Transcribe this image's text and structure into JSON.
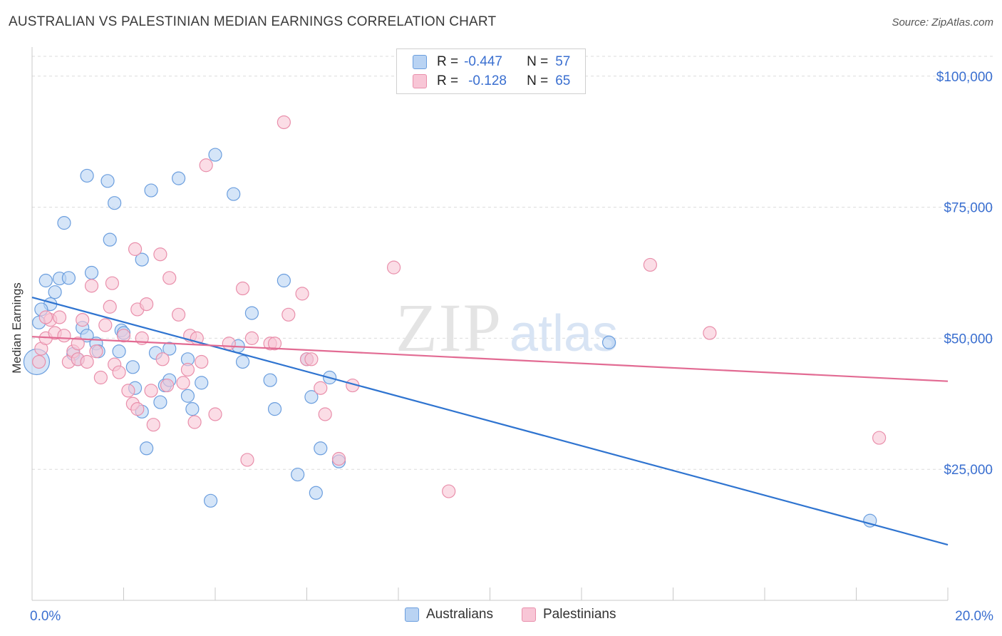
{
  "title": "AUSTRALIAN VS PALESTINIAN MEDIAN EARNINGS CORRELATION CHART",
  "source": "Source: ZipAtlas.com",
  "legend": {
    "rows": [
      {
        "r_label": "R =",
        "r_value": "-0.447",
        "n_label": "N =",
        "n_value": "57"
      },
      {
        "r_label": "R =",
        "r_value": "-0.128",
        "n_label": "N =",
        "n_value": "65"
      }
    ]
  },
  "bottom_legend": [
    "Australians",
    "Palestinians"
  ],
  "watermark": "ZIPatlas",
  "colors": {
    "australians_fill": "#b9d3f3",
    "australians_stroke": "#6b9ede",
    "australians_line": "#2f74d0",
    "palestinians_fill": "#f8c6d6",
    "palestinians_stroke": "#e98fab",
    "palestinians_line": "#e26b93",
    "axis_label": "#3a6fd0"
  },
  "chart_data": {
    "type": "scatter",
    "title": "AUSTRALIAN VS PALESTINIAN MEDIAN EARNINGS CORRELATION CHART",
    "xlabel": "",
    "ylabel": "Median Earnings",
    "xlim": [
      0,
      20
    ],
    "ylim": [
      0,
      105000
    ],
    "x_tick_labels": [
      "0.0%",
      "20.0%"
    ],
    "y_ticks": [
      25000,
      50000,
      75000,
      100000
    ],
    "y_tick_labels": [
      "$25,000",
      "$50,000",
      "$75,000",
      "$100,000"
    ],
    "grid": true,
    "legend_position": "top-center",
    "series": [
      {
        "name": "Australians",
        "r": -0.447,
        "n": 57,
        "trend": [
          [
            0,
            57800
          ],
          [
            20,
            10600
          ]
        ],
        "points": [
          [
            0.1,
            45500
          ],
          [
            0.15,
            53000
          ],
          [
            0.3,
            61000
          ],
          [
            0.4,
            56500
          ],
          [
            0.5,
            58800
          ],
          [
            0.6,
            61400
          ],
          [
            0.7,
            72000
          ],
          [
            0.8,
            61500
          ],
          [
            0.9,
            47000
          ],
          [
            1.0,
            46000
          ],
          [
            1.1,
            52000
          ],
          [
            1.2,
            50500
          ],
          [
            1.2,
            81000
          ],
          [
            1.3,
            62500
          ],
          [
            1.4,
            49000
          ],
          [
            1.45,
            47500
          ],
          [
            1.65,
            80000
          ],
          [
            1.7,
            68800
          ],
          [
            1.8,
            75800
          ],
          [
            1.9,
            47500
          ],
          [
            1.95,
            51500
          ],
          [
            2.0,
            51000
          ],
          [
            2.2,
            44500
          ],
          [
            2.25,
            40500
          ],
          [
            2.4,
            36000
          ],
          [
            2.4,
            65000
          ],
          [
            2.5,
            29000
          ],
          [
            2.6,
            78200
          ],
          [
            2.7,
            47200
          ],
          [
            2.8,
            37800
          ],
          [
            2.9,
            41000
          ],
          [
            3.0,
            48000
          ],
          [
            3.0,
            42000
          ],
          [
            3.2,
            80500
          ],
          [
            3.4,
            39000
          ],
          [
            3.4,
            46000
          ],
          [
            3.5,
            36500
          ],
          [
            3.7,
            41500
          ],
          [
            3.9,
            19000
          ],
          [
            4.0,
            85000
          ],
          [
            4.4,
            77500
          ],
          [
            4.5,
            48500
          ],
          [
            4.6,
            45500
          ],
          [
            4.8,
            54800
          ],
          [
            5.2,
            42000
          ],
          [
            5.3,
            36500
          ],
          [
            5.5,
            61000
          ],
          [
            5.8,
            24000
          ],
          [
            6.0,
            46000
          ],
          [
            6.1,
            38800
          ],
          [
            6.2,
            20500
          ],
          [
            6.3,
            29000
          ],
          [
            6.5,
            42500
          ],
          [
            6.7,
            26500
          ],
          [
            12.6,
            49200
          ],
          [
            18.3,
            15200
          ],
          [
            0.2,
            55500
          ]
        ]
      },
      {
        "name": "Palestinians",
        "r": -0.128,
        "n": 65,
        "trend": [
          [
            0,
            50300
          ],
          [
            20,
            41800
          ]
        ],
        "points": [
          [
            0.2,
            48000
          ],
          [
            0.3,
            50000
          ],
          [
            0.4,
            53500
          ],
          [
            0.5,
            51000
          ],
          [
            0.6,
            54000
          ],
          [
            0.7,
            50500
          ],
          [
            0.8,
            45500
          ],
          [
            0.9,
            47500
          ],
          [
            1.0,
            46000
          ],
          [
            1.0,
            49000
          ],
          [
            1.1,
            53500
          ],
          [
            1.2,
            45500
          ],
          [
            1.3,
            60000
          ],
          [
            1.4,
            47500
          ],
          [
            1.5,
            42500
          ],
          [
            1.6,
            52500
          ],
          [
            1.7,
            56000
          ],
          [
            1.75,
            60500
          ],
          [
            1.8,
            45000
          ],
          [
            1.9,
            43500
          ],
          [
            2.0,
            50500
          ],
          [
            2.1,
            40000
          ],
          [
            2.2,
            37500
          ],
          [
            2.3,
            36500
          ],
          [
            2.25,
            67000
          ],
          [
            2.3,
            55500
          ],
          [
            2.4,
            50000
          ],
          [
            2.5,
            56500
          ],
          [
            2.6,
            40000
          ],
          [
            2.65,
            33500
          ],
          [
            2.8,
            66000
          ],
          [
            2.85,
            46000
          ],
          [
            2.95,
            41000
          ],
          [
            3.0,
            61500
          ],
          [
            3.2,
            54500
          ],
          [
            3.3,
            41500
          ],
          [
            3.4,
            44000
          ],
          [
            3.45,
            50500
          ],
          [
            3.55,
            34000
          ],
          [
            3.6,
            50000
          ],
          [
            3.7,
            45500
          ],
          [
            3.8,
            83000
          ],
          [
            4.0,
            35500
          ],
          [
            4.3,
            49000
          ],
          [
            4.6,
            59500
          ],
          [
            4.7,
            26800
          ],
          [
            4.8,
            50000
          ],
          [
            5.2,
            49000
          ],
          [
            5.3,
            49000
          ],
          [
            5.5,
            91200
          ],
          [
            5.6,
            54500
          ],
          [
            5.9,
            58500
          ],
          [
            6.0,
            46000
          ],
          [
            6.1,
            46000
          ],
          [
            6.3,
            40500
          ],
          [
            6.4,
            35500
          ],
          [
            6.7,
            27000
          ],
          [
            7.0,
            41000
          ],
          [
            7.9,
            63500
          ],
          [
            9.1,
            20800
          ],
          [
            13.5,
            64000
          ],
          [
            14.8,
            51000
          ],
          [
            18.5,
            31000
          ],
          [
            0.3,
            54000
          ],
          [
            0.15,
            45500
          ]
        ]
      }
    ]
  }
}
